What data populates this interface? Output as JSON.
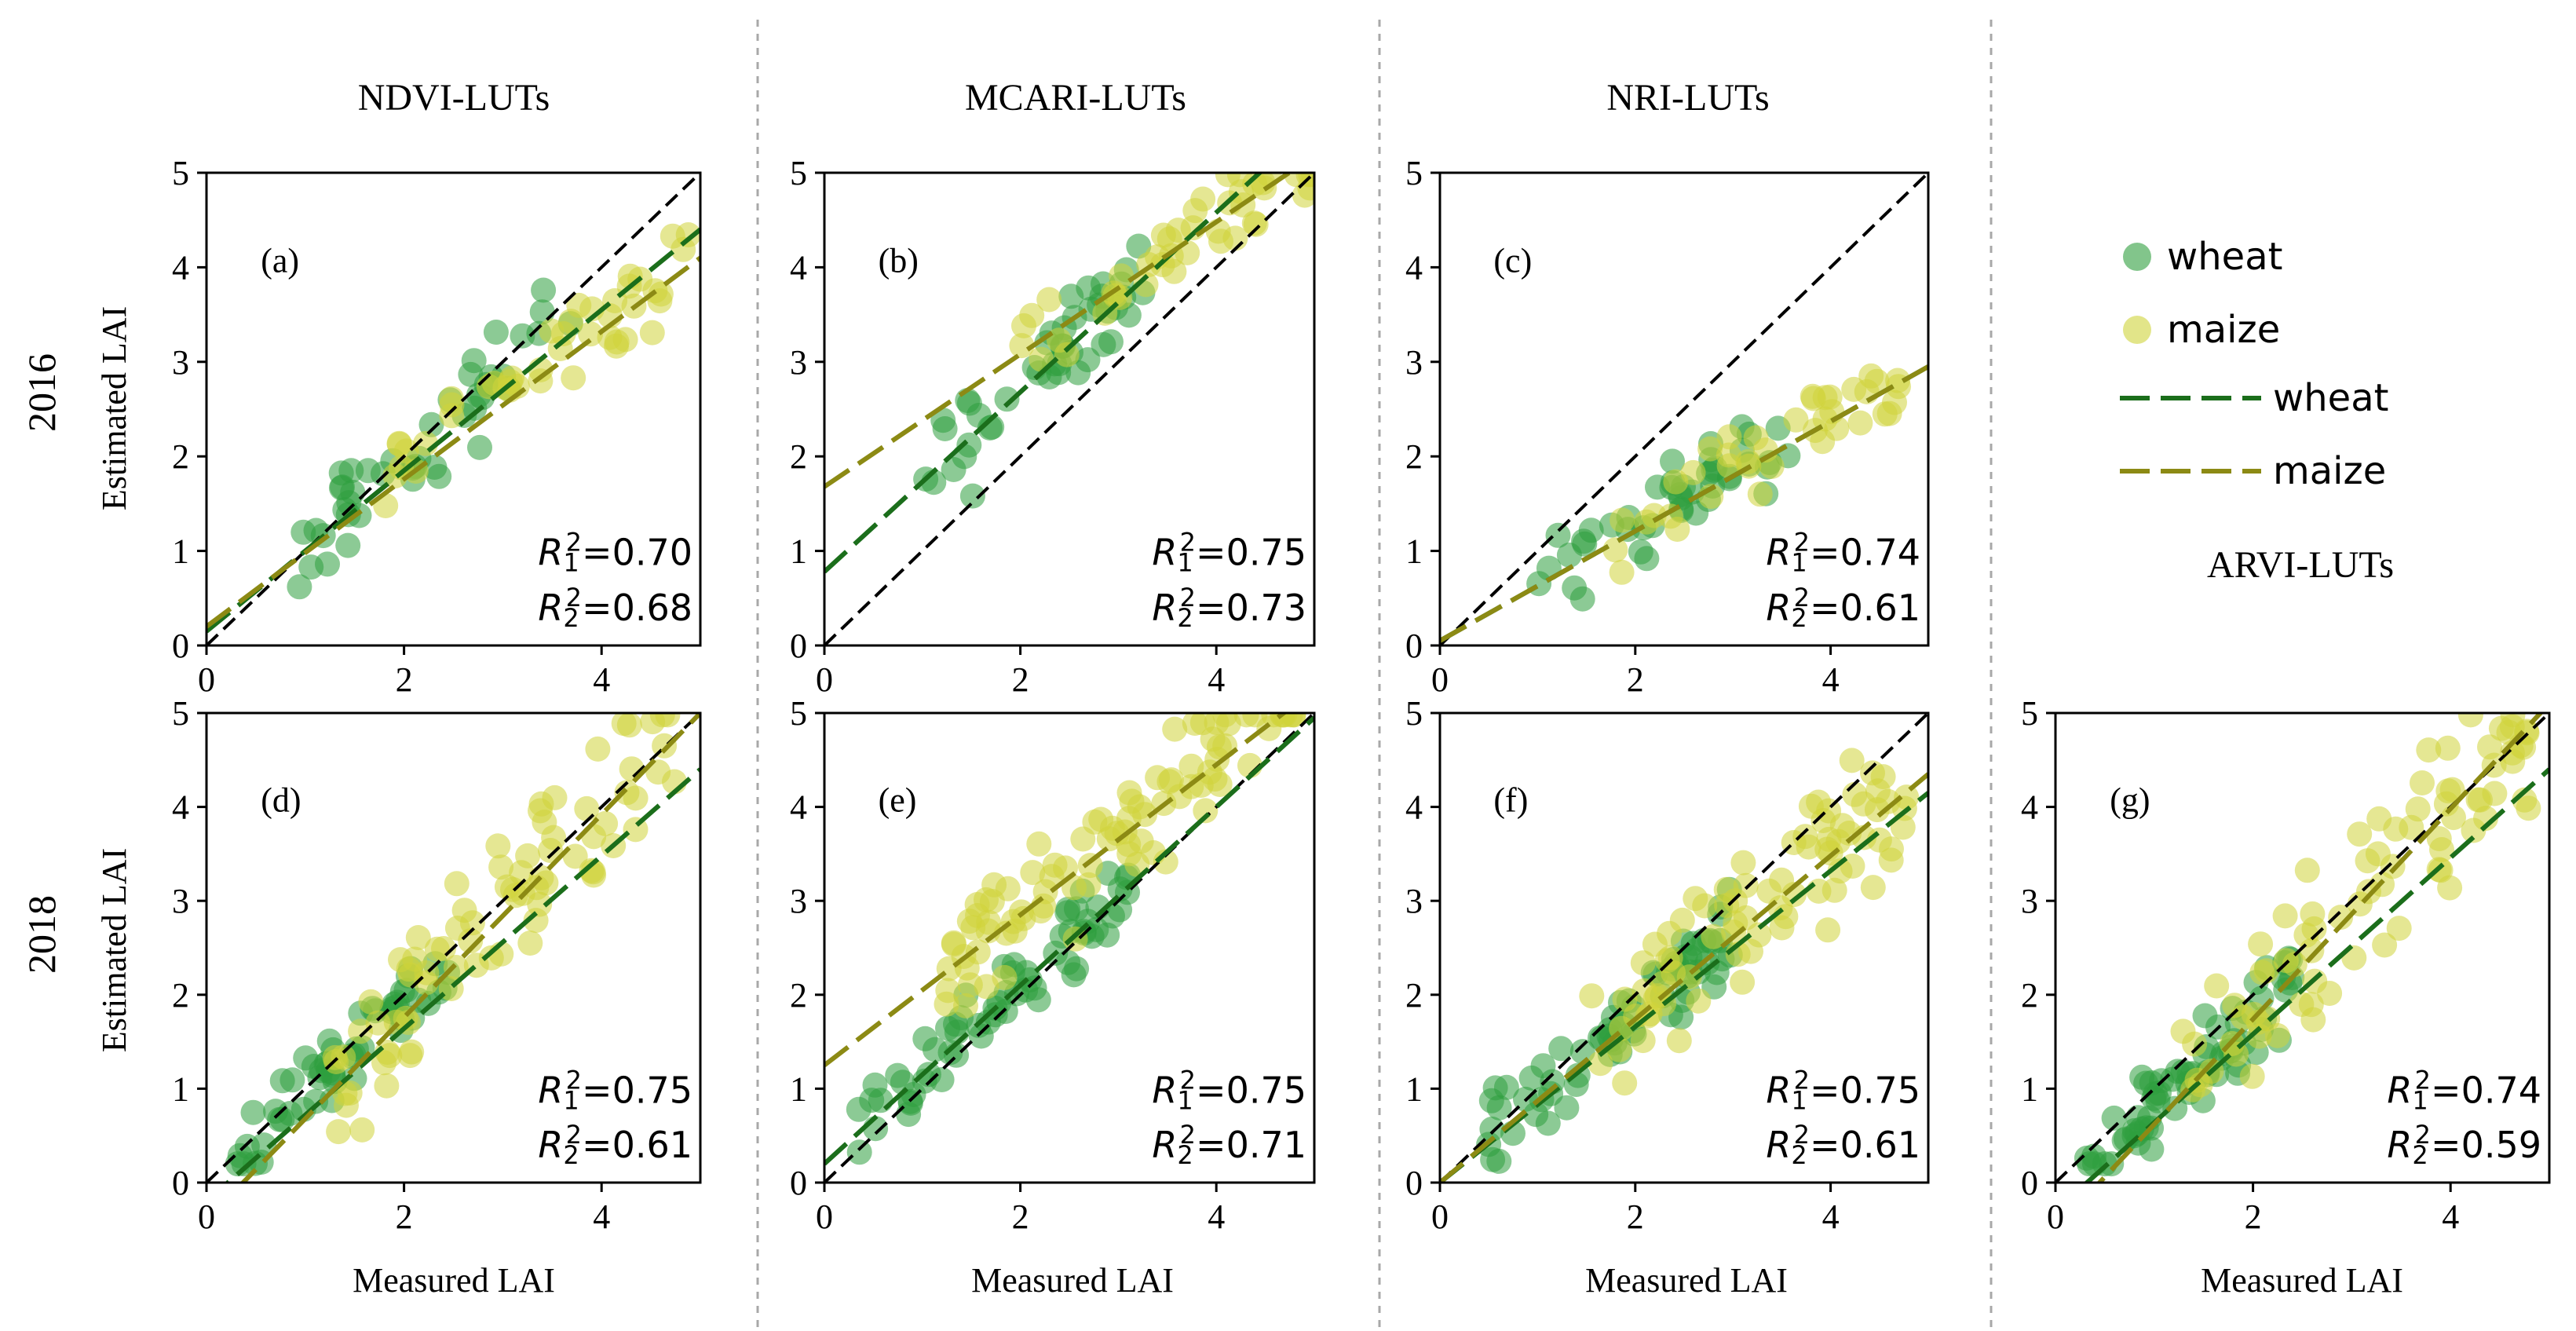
{
  "figure": {
    "row_labels": [
      "2016",
      "2018"
    ],
    "ylabel": "Estimated LAI",
    "xlabel": "Measured LAI",
    "column_titles": [
      "NDVI-LUTs",
      "MCARI-LUTs",
      "NRI-LUTs"
    ],
    "arvi_title": "ARVI-LUTs",
    "legend": {
      "items": [
        {
          "label": "wheat",
          "kind": "marker",
          "color": "#2e9e3e"
        },
        {
          "label": "maize",
          "kind": "marker",
          "color": "#cfd43a"
        },
        {
          "label": "wheat",
          "kind": "line",
          "color": "#1b6e1b"
        },
        {
          "label": "maize",
          "kind": "line",
          "color": "#8c8a14"
        }
      ]
    },
    "colors": {
      "wheat_point": "#2e9e3e",
      "maize_point": "#cfd43a",
      "wheat_fit": "#1b6e1b",
      "maize_fit": "#8c8a14",
      "one_to_one": "#000000",
      "separator": "#a8a8a8"
    }
  },
  "chart_data": [
    {
      "id": "a",
      "type": "scatter",
      "row": "2016",
      "method": "NDVI-LUTs",
      "panel_label": "(a)",
      "xlabel": "",
      "ylabel": "Estimated LAI",
      "xlim": [
        0,
        5
      ],
      "ylim": [
        0,
        5
      ],
      "x_ticks": [
        0,
        2,
        4
      ],
      "y_ticks": [
        0,
        1,
        2,
        3,
        4,
        5
      ],
      "r2_label_1": "=0.70",
      "r2_label_2": "=0.68",
      "r2_values": [
        0.7,
        0.68
      ],
      "fit_wheat": {
        "intercept": 0.15,
        "slope": 0.85
      },
      "fit_maize": {
        "intercept": 0.2,
        "slope": 0.78
      },
      "series": [
        {
          "name": "wheat",
          "n": 45,
          "x_range": [
            0.9,
            3.8
          ],
          "slope": 0.95,
          "intercept": 0.1,
          "noise": 0.35
        },
        {
          "name": "maize",
          "n": 45,
          "x_range": [
            1.8,
            4.9
          ],
          "slope": 0.75,
          "intercept": 0.4,
          "noise": 0.3
        }
      ]
    },
    {
      "id": "b",
      "type": "scatter",
      "row": "2016",
      "method": "MCARI-LUTs",
      "panel_label": "(b)",
      "xlabel": "",
      "ylabel": "",
      "xlim": [
        0,
        5
      ],
      "ylim": [
        0,
        5
      ],
      "x_ticks": [
        0,
        2,
        4
      ],
      "y_ticks": [
        0,
        1,
        2,
        3,
        4,
        5
      ],
      "r2_label_1": "=0.75",
      "r2_label_2": "=0.73",
      "r2_values": [
        0.75,
        0.73
      ],
      "fit_wheat": {
        "intercept": 0.78,
        "slope": 0.95
      },
      "fit_maize": {
        "intercept": 1.68,
        "slope": 0.7
      },
      "series": [
        {
          "name": "wheat",
          "n": 45,
          "x_range": [
            0.9,
            3.4
          ],
          "slope": 0.95,
          "intercept": 0.8,
          "noise": 0.35
        },
        {
          "name": "maize",
          "n": 45,
          "x_range": [
            2.0,
            5.0
          ],
          "slope": 0.7,
          "intercept": 1.7,
          "noise": 0.3
        }
      ]
    },
    {
      "id": "c",
      "type": "scatter",
      "row": "2016",
      "method": "NRI-LUTs",
      "panel_label": "(c)",
      "xlabel": "",
      "ylabel": "",
      "xlim": [
        0,
        5
      ],
      "ylim": [
        0,
        5
      ],
      "x_ticks": [
        0,
        2,
        4
      ],
      "y_ticks": [
        0,
        1,
        2,
        3,
        4,
        5
      ],
      "r2_label_1": "=0.74",
      "r2_label_2": "=0.61",
      "r2_values": [
        0.74,
        0.61
      ],
      "fit_wheat": {
        "intercept": 0.05,
        "slope": 0.58
      },
      "fit_maize": {
        "intercept": 0.05,
        "slope": 0.58
      },
      "series": [
        {
          "name": "wheat",
          "n": 45,
          "x_range": [
            1.0,
            3.6
          ],
          "slope": 0.62,
          "intercept": 0.0,
          "noise": 0.3
        },
        {
          "name": "maize",
          "n": 40,
          "x_range": [
            1.5,
            4.9
          ],
          "slope": 0.58,
          "intercept": 0.1,
          "noise": 0.3
        }
      ]
    },
    {
      "id": "d",
      "type": "scatter",
      "row": "2018",
      "method": "NDVI-LUTs",
      "panel_label": "(d)",
      "xlabel": "Measured LAI",
      "ylabel": "Estimated LAI",
      "xlim": [
        0,
        5
      ],
      "ylim": [
        0,
        5
      ],
      "x_ticks": [
        0,
        2,
        4
      ],
      "y_ticks": [
        0,
        1,
        2,
        3,
        4,
        5
      ],
      "r2_label_1": "=0.75",
      "r2_label_2": "=0.61",
      "r2_values": [
        0.75,
        0.61
      ],
      "fit_wheat": {
        "intercept": -0.2,
        "slope": 0.92
      },
      "fit_maize": {
        "intercept": -0.4,
        "slope": 1.08
      },
      "series": [
        {
          "name": "wheat",
          "n": 55,
          "x_range": [
            0.3,
            2.5
          ],
          "slope": 0.95,
          "intercept": 0.0,
          "noise": 0.3
        },
        {
          "name": "maize",
          "n": 80,
          "x_range": [
            1.3,
            4.8
          ],
          "slope": 1.05,
          "intercept": -0.3,
          "noise": 0.55
        }
      ]
    },
    {
      "id": "e",
      "type": "scatter",
      "row": "2018",
      "method": "MCARI-LUTs",
      "panel_label": "(e)",
      "xlabel": "Measured LAI",
      "ylabel": "",
      "xlim": [
        0,
        5
      ],
      "ylim": [
        0,
        5
      ],
      "x_ticks": [
        0,
        2,
        4
      ],
      "y_ticks": [
        0,
        1,
        2,
        3,
        4,
        5
      ],
      "r2_label_1": "=0.75",
      "r2_label_2": "=0.71",
      "r2_values": [
        0.75,
        0.71
      ],
      "fit_wheat": {
        "intercept": 0.2,
        "slope": 0.95
      },
      "fit_maize": {
        "intercept": 1.25,
        "slope": 0.8
      },
      "series": [
        {
          "name": "wheat",
          "n": 65,
          "x_range": [
            0.3,
            3.2
          ],
          "slope": 0.95,
          "intercept": 0.25,
          "noise": 0.3
        },
        {
          "name": "maize",
          "n": 90,
          "x_range": [
            1.2,
            4.8
          ],
          "slope": 0.85,
          "intercept": 1.15,
          "noise": 0.45
        }
      ]
    },
    {
      "id": "f",
      "type": "scatter",
      "row": "2018",
      "method": "NRI-LUTs",
      "panel_label": "(f)",
      "xlabel": "Measured LAI",
      "ylabel": "",
      "xlim": [
        0,
        5
      ],
      "ylim": [
        0,
        5
      ],
      "x_ticks": [
        0,
        2,
        4
      ],
      "y_ticks": [
        0,
        1,
        2,
        3,
        4,
        5
      ],
      "r2_label_1": "=0.75",
      "r2_label_2": "=0.61",
      "r2_values": [
        0.75,
        0.61
      ],
      "fit_wheat": {
        "intercept": 0.0,
        "slope": 0.83
      },
      "fit_maize": {
        "intercept": 0.0,
        "slope": 0.87
      },
      "series": [
        {
          "name": "wheat",
          "n": 70,
          "x_range": [
            0.3,
            3.0
          ],
          "slope": 0.85,
          "intercept": 0.1,
          "noise": 0.35
        },
        {
          "name": "maize",
          "n": 80,
          "x_range": [
            1.5,
            4.8
          ],
          "slope": 0.9,
          "intercept": 0.0,
          "noise": 0.55
        }
      ]
    },
    {
      "id": "g",
      "type": "scatter",
      "row": "2018",
      "method": "ARVI-LUTs",
      "panel_label": "(g)",
      "xlabel": "Measured LAI",
      "ylabel": "",
      "xlim": [
        0,
        5
      ],
      "ylim": [
        0,
        5
      ],
      "x_ticks": [
        0,
        2,
        4
      ],
      "y_ticks": [
        0,
        1,
        2,
        3,
        4,
        5
      ],
      "r2_label_1": "=0.74",
      "r2_label_2": "=0.59",
      "r2_values": [
        0.74,
        0.59
      ],
      "fit_wheat": {
        "intercept": -0.3,
        "slope": 0.94
      },
      "fit_maize": {
        "intercept": -0.5,
        "slope": 1.12
      },
      "series": [
        {
          "name": "wheat",
          "n": 70,
          "x_range": [
            0.3,
            2.4
          ],
          "slope": 0.95,
          "intercept": -0.15,
          "noise": 0.3
        },
        {
          "name": "maize",
          "n": 80,
          "x_range": [
            1.2,
            4.8
          ],
          "slope": 1.05,
          "intercept": -0.2,
          "noise": 0.6
        }
      ]
    }
  ]
}
